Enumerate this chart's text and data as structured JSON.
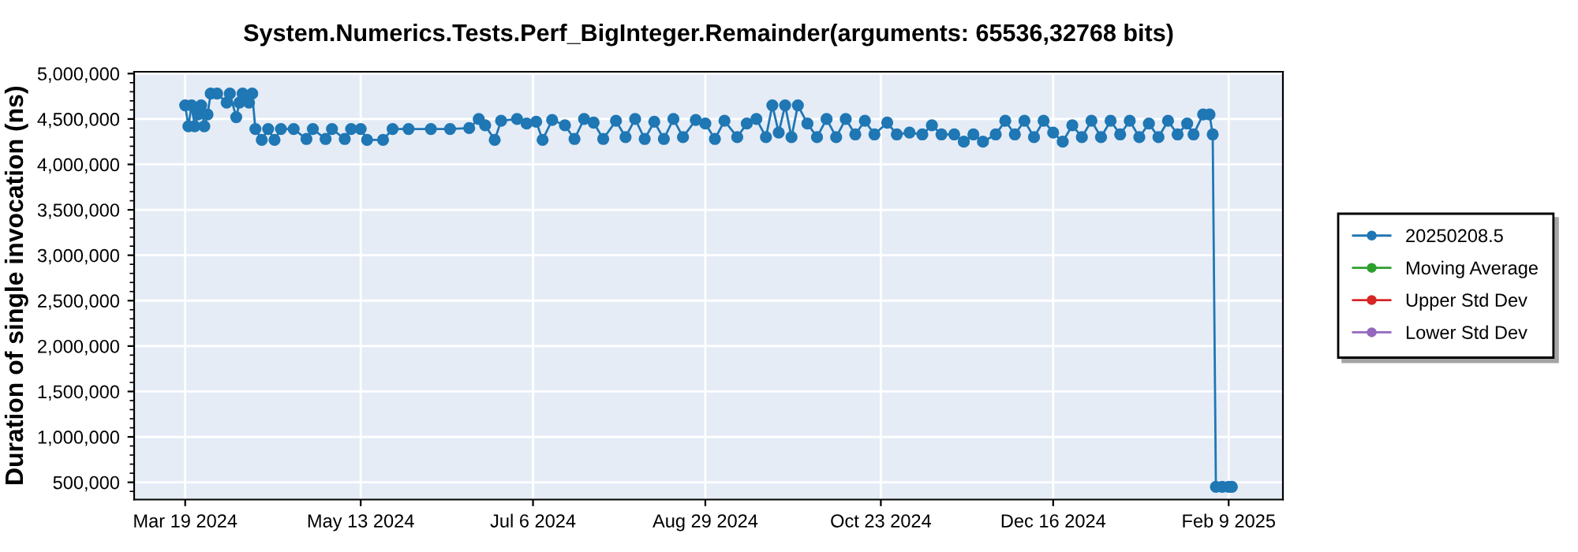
{
  "chart_data": {
    "type": "line",
    "title": "System.Numerics.Tests.Perf_BigInteger.Remainder(arguments: 65536,32768 bits)",
    "ylabel": "Duration of single invocation (ns)",
    "x": [
      "2024-03-19",
      "2024-03-20",
      "2024-03-21",
      "2024-03-22",
      "2024-03-23",
      "2024-03-24",
      "2024-03-25",
      "2024-03-26",
      "2024-03-27",
      "2024-03-29",
      "2024-04-01",
      "2024-04-02",
      "2024-04-04",
      "2024-04-05",
      "2024-04-06",
      "2024-04-08",
      "2024-04-09",
      "2024-04-10",
      "2024-04-12",
      "2024-04-14",
      "2024-04-16",
      "2024-04-18",
      "2024-04-22",
      "2024-04-26",
      "2024-04-28",
      "2024-05-02",
      "2024-05-04",
      "2024-05-08",
      "2024-05-10",
      "2024-05-13",
      "2024-05-15",
      "2024-05-20",
      "2024-05-23",
      "2024-05-28",
      "2024-06-04",
      "2024-06-10",
      "2024-06-16",
      "2024-06-19",
      "2024-06-21",
      "2024-06-24",
      "2024-06-26",
      "2024-07-01",
      "2024-07-04",
      "2024-07-07",
      "2024-07-09",
      "2024-07-12",
      "2024-07-16",
      "2024-07-19",
      "2024-07-22",
      "2024-07-25",
      "2024-07-28",
      "2024-08-01",
      "2024-08-04",
      "2024-08-07",
      "2024-08-10",
      "2024-08-13",
      "2024-08-16",
      "2024-08-19",
      "2024-08-22",
      "2024-08-26",
      "2024-08-29",
      "2024-09-01",
      "2024-09-04",
      "2024-09-08",
      "2024-09-11",
      "2024-09-14",
      "2024-09-17",
      "2024-09-19",
      "2024-09-21",
      "2024-09-23",
      "2024-09-25",
      "2024-09-27",
      "2024-09-30",
      "2024-10-03",
      "2024-10-06",
      "2024-10-09",
      "2024-10-12",
      "2024-10-15",
      "2024-10-18",
      "2024-10-21",
      "2024-10-25",
      "2024-10-28",
      "2024-11-01",
      "2024-11-05",
      "2024-11-08",
      "2024-11-11",
      "2024-11-15",
      "2024-11-18",
      "2024-11-21",
      "2024-11-24",
      "2024-11-28",
      "2024-12-01",
      "2024-12-04",
      "2024-12-07",
      "2024-12-10",
      "2024-12-13",
      "2024-12-16",
      "2024-12-19",
      "2024-12-22",
      "2024-12-25",
      "2024-12-28",
      "2024-12-31",
      "2025-01-03",
      "2025-01-06",
      "2025-01-09",
      "2025-01-12",
      "2025-01-15",
      "2025-01-18",
      "2025-01-21",
      "2025-01-24",
      "2025-01-27",
      "2025-01-29",
      "2025-02-01",
      "2025-02-03",
      "2025-02-04",
      "2025-02-05",
      "2025-02-07",
      "2025-02-09",
      "2025-02-10"
    ],
    "series": [
      {
        "name": "20250208.5",
        "color": "#1f77b4",
        "values": [
          4650000,
          4420000,
          4650000,
          4420000,
          4550000,
          4650000,
          4420000,
          4550000,
          4780000,
          4780000,
          4680000,
          4780000,
          4520000,
          4680000,
          4780000,
          4680000,
          4780000,
          4390000,
          4270000,
          4390000,
          4270000,
          4390000,
          4390000,
          4280000,
          4390000,
          4280000,
          4390000,
          4280000,
          4390000,
          4390000,
          4270000,
          4270000,
          4390000,
          4390000,
          4390000,
          4390000,
          4400000,
          4500000,
          4430000,
          4270000,
          4480000,
          4500000,
          4450000,
          4470000,
          4270000,
          4490000,
          4430000,
          4280000,
          4500000,
          4460000,
          4280000,
          4480000,
          4300000,
          4500000,
          4280000,
          4470000,
          4280000,
          4500000,
          4300000,
          4490000,
          4450000,
          4280000,
          4480000,
          4300000,
          4450000,
          4500000,
          4300000,
          4650000,
          4350000,
          4650000,
          4300000,
          4650000,
          4450000,
          4300000,
          4500000,
          4300000,
          4500000,
          4330000,
          4480000,
          4330000,
          4460000,
          4330000,
          4350000,
          4330000,
          4430000,
          4330000,
          4330000,
          4250000,
          4330000,
          4250000,
          4330000,
          4480000,
          4330000,
          4480000,
          4300000,
          4480000,
          4350000,
          4250000,
          4430000,
          4300000,
          4480000,
          4300000,
          4480000,
          4330000,
          4480000,
          4300000,
          4450000,
          4300000,
          4480000,
          4330000,
          4450000,
          4330000,
          4550000,
          4550000,
          4330000,
          450000,
          450000,
          450000,
          450000
        ]
      },
      {
        "name": "Moving Average",
        "color": "#2ca02c",
        "values": [
          null,
          null,
          null,
          null,
          null,
          null,
          null,
          null,
          null,
          null,
          null,
          null,
          null,
          null,
          null,
          null,
          null,
          null,
          null,
          null,
          null,
          null,
          null,
          null,
          null,
          null,
          null,
          null,
          null,
          null,
          null,
          null,
          null,
          null,
          null,
          null,
          null,
          null,
          null,
          null,
          null,
          null,
          null,
          null,
          null,
          null,
          null,
          null,
          null,
          null,
          null,
          null,
          null,
          null,
          null,
          null,
          null,
          null,
          null,
          null,
          null,
          null,
          null,
          null,
          null,
          null,
          null,
          null,
          null,
          null,
          null,
          null,
          null,
          null,
          null,
          null,
          null,
          null,
          null,
          null,
          null,
          null,
          null,
          null,
          null,
          null,
          null,
          null,
          null,
          null,
          null,
          null,
          null,
          null,
          null,
          null,
          null,
          null,
          null,
          null,
          null,
          null,
          null,
          null,
          null,
          null,
          null,
          null,
          null,
          null,
          null,
          null,
          null,
          null,
          null,
          null,
          null,
          null,
          null
        ]
      },
      {
        "name": "Upper Std Dev",
        "color": "#d62728",
        "values": [
          null,
          null,
          null,
          null,
          null,
          null,
          null,
          null,
          null,
          null,
          null,
          null,
          null,
          null,
          null,
          null,
          null,
          null,
          null,
          null,
          null,
          null,
          null,
          null,
          null,
          null,
          null,
          null,
          null,
          null,
          null,
          null,
          null,
          null,
          null,
          null,
          null,
          null,
          null,
          null,
          null,
          null,
          null,
          null,
          null,
          null,
          null,
          null,
          null,
          null,
          null,
          null,
          null,
          null,
          null,
          null,
          null,
          null,
          null,
          null,
          null,
          null,
          null,
          null,
          null,
          null,
          null,
          null,
          null,
          null,
          null,
          null,
          null,
          null,
          null,
          null,
          null,
          null,
          null,
          null,
          null,
          null,
          null,
          null,
          null,
          null,
          null,
          null,
          null,
          null,
          null,
          null,
          null,
          null,
          null,
          null,
          null,
          null,
          null,
          null,
          null,
          null,
          null,
          null,
          null,
          null,
          null,
          null,
          null,
          null,
          null,
          null,
          null,
          null,
          null,
          null,
          null,
          null,
          null
        ]
      },
      {
        "name": "Lower Std Dev",
        "color": "#9467bd",
        "values": [
          null,
          null,
          null,
          null,
          null,
          null,
          null,
          null,
          null,
          null,
          null,
          null,
          null,
          null,
          null,
          null,
          null,
          null,
          null,
          null,
          null,
          null,
          null,
          null,
          null,
          null,
          null,
          null,
          null,
          null,
          null,
          null,
          null,
          null,
          null,
          null,
          null,
          null,
          null,
          null,
          null,
          null,
          null,
          null,
          null,
          null,
          null,
          null,
          null,
          null,
          null,
          null,
          null,
          null,
          null,
          null,
          null,
          null,
          null,
          null,
          null,
          null,
          null,
          null,
          null,
          null,
          null,
          null,
          null,
          null,
          null,
          null,
          null,
          null,
          null,
          null,
          null,
          null,
          null,
          null,
          null,
          null,
          null,
          null,
          null,
          null,
          null,
          null,
          null,
          null,
          null,
          null,
          null,
          null,
          null,
          null,
          null,
          null,
          null,
          null,
          null,
          null,
          null,
          null,
          null,
          null,
          null,
          null,
          null,
          null,
          null,
          null,
          null,
          null,
          null,
          null,
          null,
          null,
          null
        ]
      }
    ],
    "xlim": [
      "2024-03-03",
      "2025-02-26"
    ],
    "xticks": [
      {
        "value": "2024-03-19",
        "label": "Mar 19 2024"
      },
      {
        "value": "2024-05-13",
        "label": "May 13 2024"
      },
      {
        "value": "2024-07-06",
        "label": "Jul 6 2024"
      },
      {
        "value": "2024-08-29",
        "label": "Aug 29 2024"
      },
      {
        "value": "2024-10-23",
        "label": "Oct 23 2024"
      },
      {
        "value": "2024-12-16",
        "label": "Dec 16 2024"
      },
      {
        "value": "2025-02-09",
        "label": "Feb 9 2025"
      }
    ],
    "ylim": [
      310000,
      5020000
    ],
    "yticks": [
      {
        "value": 500000,
        "label": "500,000"
      },
      {
        "value": 1000000,
        "label": "1,000,000"
      },
      {
        "value": 1500000,
        "label": "1,500,000"
      },
      {
        "value": 2000000,
        "label": "2,000,000"
      },
      {
        "value": 2500000,
        "label": "2,500,000"
      },
      {
        "value": 3000000,
        "label": "3,000,000"
      },
      {
        "value": 3500000,
        "label": "3,500,000"
      },
      {
        "value": 4000000,
        "label": "4,000,000"
      },
      {
        "value": 4500000,
        "label": "4,500,000"
      },
      {
        "value": 5000000,
        "label": "5,000,000"
      }
    ],
    "grid": true,
    "legend": "right",
    "marker": "circle",
    "line_style": "solid"
  }
}
